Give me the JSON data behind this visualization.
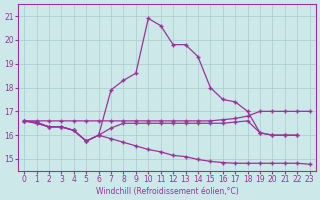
{
  "xlabel": "Windchill (Refroidissement éolien,°C)",
  "bg_color": "#cce8e8",
  "line_color": "#993399",
  "grid_color": "#aacccc",
  "xlim": [
    -0.5,
    23.5
  ],
  "ylim": [
    14.5,
    21.5
  ],
  "yticks": [
    15,
    16,
    17,
    18,
    19,
    20,
    21
  ],
  "xticks": [
    0,
    1,
    2,
    3,
    4,
    5,
    6,
    7,
    8,
    9,
    10,
    11,
    12,
    13,
    14,
    15,
    16,
    17,
    18,
    19,
    20,
    21,
    22,
    23
  ],
  "series1_x": [
    0,
    1,
    2,
    3,
    4,
    5,
    6,
    7,
    8,
    9,
    10,
    11,
    12,
    13,
    14,
    15,
    16,
    17,
    18,
    19,
    20,
    21,
    22
  ],
  "series1_y": [
    16.6,
    16.5,
    16.35,
    16.35,
    16.2,
    15.75,
    16.0,
    17.9,
    18.3,
    18.6,
    20.9,
    20.6,
    19.8,
    19.8,
    19.3,
    18.0,
    17.5,
    17.4,
    17.0,
    16.1,
    16.0,
    16.0,
    16.0
  ],
  "series2_x": [
    0,
    1,
    2,
    3,
    4,
    5,
    6,
    7,
    8,
    9,
    10,
    11,
    12,
    13,
    14,
    15,
    16,
    17,
    18,
    19,
    20,
    21,
    22,
    23
  ],
  "series2_y": [
    16.6,
    16.5,
    16.35,
    16.35,
    16.2,
    15.75,
    16.0,
    15.85,
    15.7,
    15.55,
    15.4,
    15.3,
    15.15,
    15.1,
    14.98,
    14.9,
    14.85,
    14.82,
    14.82,
    14.82,
    14.82,
    14.82,
    14.82,
    14.78
  ],
  "series3_x": [
    0,
    1,
    2,
    3,
    4,
    5,
    6,
    7,
    8,
    9,
    10,
    11,
    12,
    13,
    14,
    15,
    16,
    17,
    18,
    19,
    20,
    21,
    22
  ],
  "series3_y": [
    16.6,
    16.55,
    16.35,
    16.35,
    16.2,
    15.75,
    16.0,
    16.3,
    16.5,
    16.5,
    16.5,
    16.5,
    16.5,
    16.5,
    16.5,
    16.5,
    16.5,
    16.55,
    16.6,
    16.1,
    16.0,
    16.0,
    16.0
  ],
  "series4_x": [
    0,
    1,
    2,
    3,
    4,
    5,
    6,
    7,
    8,
    9,
    10,
    11,
    12,
    13,
    14,
    15,
    16,
    17,
    18,
    19,
    20,
    21,
    22,
    23
  ],
  "series4_y": [
    16.6,
    16.6,
    16.6,
    16.6,
    16.6,
    16.6,
    16.6,
    16.6,
    16.6,
    16.6,
    16.6,
    16.6,
    16.6,
    16.6,
    16.6,
    16.6,
    16.65,
    16.7,
    16.8,
    17.0,
    17.0,
    17.0,
    17.0,
    17.0
  ]
}
